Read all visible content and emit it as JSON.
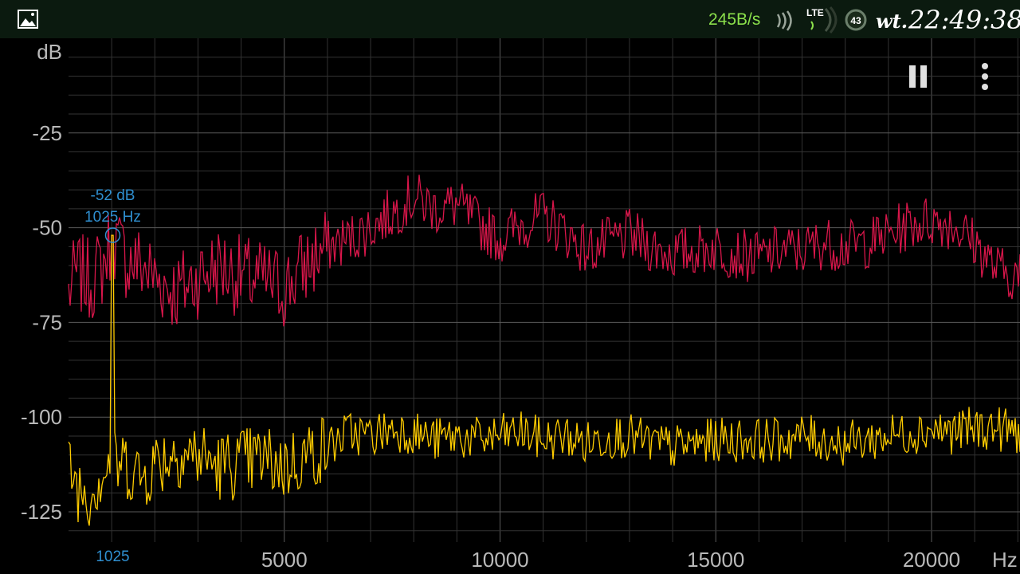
{
  "status_bar": {
    "net_speed": "245B/s",
    "network_type": "LTE",
    "battery_level": "43",
    "day": "wt.",
    "time": "22:49:38",
    "icons": [
      "gallery-icon",
      "signal-icon",
      "lte-icon",
      "battery-icon"
    ]
  },
  "controls": {
    "icons": [
      "pause-icon",
      "more-vert-icon"
    ]
  },
  "colors": {
    "background": "#000000",
    "status_bar": "#0b1a0f",
    "net_speed": "#8be04b",
    "grid": "#3a3a3a",
    "axis_text": "#b9b9b9",
    "series_peak": "#d8164a",
    "series_current": "#ffcc00",
    "marker": "#2f8fd0"
  },
  "chart_data": {
    "type": "line",
    "title": "",
    "xlabel": "Hz",
    "ylabel": "dB",
    "xlim": [
      0,
      22050
    ],
    "ylim": [
      -133,
      0
    ],
    "grid": true,
    "x_ticks": [
      {
        "value": 5000,
        "label": "5000"
      },
      {
        "value": 10000,
        "label": "10000"
      },
      {
        "value": 15000,
        "label": "15000"
      },
      {
        "value": 20000,
        "label": "20000"
      }
    ],
    "y_ticks": [
      {
        "value": -25,
        "label": "-25"
      },
      {
        "value": -50,
        "label": "-50"
      },
      {
        "value": -75,
        "label": "-75"
      },
      {
        "value": -100,
        "label": "-100"
      },
      {
        "value": -125,
        "label": "-125"
      }
    ],
    "marker": {
      "x": 1025,
      "y": -52,
      "db_label": "-52 dB",
      "hz_label": "1025 Hz",
      "axis_label": "1025"
    },
    "series": [
      {
        "role": "peak-hold",
        "color": "#d8164a",
        "x": [
          0,
          200,
          500,
          800,
          1025,
          1300,
          1700,
          2000,
          2500,
          3000,
          3500,
          4000,
          4500,
          5000,
          5500,
          6000,
          6500,
          7000,
          7500,
          8000,
          8500,
          9000,
          9500,
          10000,
          10500,
          11000,
          11500,
          12000,
          12500,
          13000,
          13500,
          14000,
          14500,
          15000,
          15500,
          16000,
          16500,
          17000,
          17500,
          18000,
          18500,
          19000,
          19500,
          20000,
          20500,
          21000,
          21500,
          22050
        ],
        "y": [
          -67,
          -62,
          -64,
          -60,
          -52,
          -58,
          -60,
          -63,
          -67,
          -63,
          -60,
          -63,
          -64,
          -66,
          -60,
          -55,
          -53,
          -50,
          -46,
          -42,
          -45,
          -44,
          -49,
          -53,
          -49,
          -47,
          -51,
          -56,
          -54,
          -52,
          -55,
          -57,
          -56,
          -55,
          -57,
          -58,
          -56,
          -56,
          -54,
          -55,
          -54,
          -52,
          -49,
          -48,
          -49,
          -54,
          -61,
          -63
        ]
      },
      {
        "role": "current",
        "color": "#ffcc00",
        "x": [
          0,
          200,
          500,
          800,
          1000,
          1025,
          1050,
          1300,
          1700,
          2000,
          2500,
          3000,
          3500,
          4000,
          4500,
          5000,
          5500,
          6000,
          6500,
          7000,
          7500,
          8000,
          8500,
          9000,
          9500,
          10000,
          10500,
          11000,
          11500,
          12000,
          12500,
          13000,
          13500,
          14000,
          14500,
          15000,
          15500,
          16000,
          16500,
          17000,
          17500,
          18000,
          18500,
          19000,
          19500,
          20000,
          20500,
          21000,
          21500,
          22050
        ],
        "y": [
          -112,
          -118,
          -120,
          -114,
          -113,
          -52,
          -113,
          -112,
          -116,
          -112,
          -109,
          -110,
          -113,
          -112,
          -111,
          -113,
          -110,
          -108,
          -104,
          -105,
          -103,
          -104,
          -106,
          -105,
          -106,
          -105,
          -104,
          -106,
          -105,
          -107,
          -105,
          -105,
          -107,
          -108,
          -107,
          -106,
          -106,
          -106,
          -106,
          -105,
          -106,
          -107,
          -106,
          -105,
          -104,
          -103,
          -104,
          -103,
          -103,
          -104
        ]
      }
    ]
  }
}
